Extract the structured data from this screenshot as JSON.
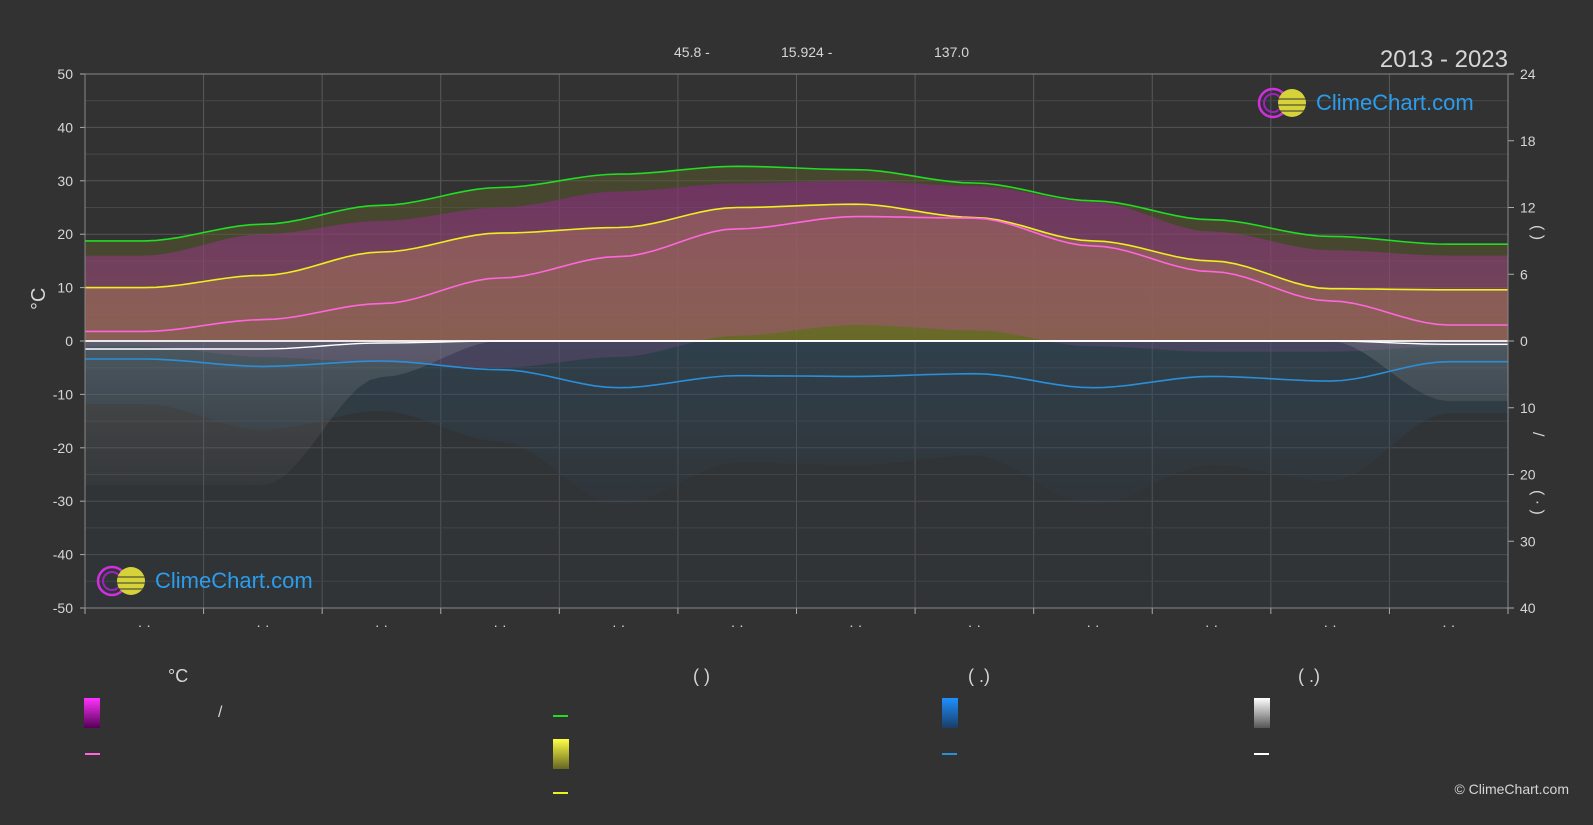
{
  "header": {
    "value_1": "45.8 -",
    "value_2": "15.924 -",
    "value_3": "137.0",
    "period": "2013 - 2023"
  },
  "axes": {
    "left_unit": "°C",
    "left_ticks": [
      "50",
      "40",
      "30",
      "20",
      "10",
      "0",
      "-10",
      "-20",
      "-30",
      "-40",
      "-50"
    ],
    "right_upper_ticks": [
      "24",
      "18",
      "12",
      "6",
      "0"
    ],
    "right_lower_ticks": [
      "10",
      "20",
      "30",
      "40"
    ],
    "right_title_upper": "(        )",
    "right_title_slash": "/",
    "right_title_lower": "(  ·  )",
    "x_ticks": [
      "· ·",
      "· ·",
      "· ·",
      "· ·",
      "· ·",
      "· ·",
      "· ·",
      "· ·",
      "· ·",
      "· ·",
      "· ·",
      "· ·"
    ]
  },
  "legend": {
    "temp_head": "°C",
    "sun_head": "(           )",
    "rain_head": "(    .)",
    "snow_head": "(    .)",
    "temp_range_text": "/",
    "colors": {
      "temp_range": "#e020e0",
      "temp_mean": "#ff66dd",
      "daylight": "#22dd22",
      "sunshine": "#dddd33",
      "sunshine_mean": "#eeee22",
      "rain": "#1e88e5",
      "rain_mean": "#2a8fd8",
      "snow": "#e0e0e0",
      "snow_mean": "#ffffff"
    }
  },
  "logos": {
    "top": "ClimeChart.com",
    "bottom": "ClimeChart.com"
  },
  "copyright": "© ClimeChart.com",
  "chart_data": {
    "type": "area",
    "x": [
      0.5,
      1.5,
      2.5,
      3.5,
      4.5,
      5.5,
      6.5,
      7.5,
      8.5,
      9.5,
      10.5,
      11.5
    ],
    "xlim": [
      0,
      12
    ],
    "ylim": [
      -50,
      50
    ],
    "y2_upper_lim": [
      0,
      24
    ],
    "y2_lower_lim": [
      0,
      40
    ],
    "grid": true,
    "series": [
      {
        "axis": "left",
        "values": [
          1.8,
          4.0,
          7.0,
          11.8,
          15.8,
          21.0,
          23.3,
          23.0,
          17.8,
          13.0,
          7.5,
          3.0
        ]
      },
      {
        "axis": "left",
        "values": [
          16.0,
          20.0,
          22.5,
          25.0,
          28.0,
          29.5,
          30.0,
          29.0,
          26.0,
          20.5,
          17.0,
          16.0
        ]
      },
      {
        "axis": "left",
        "values": [
          -1.0,
          -3.0,
          -4.0,
          -5.0,
          -3.0,
          1.0,
          3.0,
          2.0,
          -1.0,
          -2.0,
          -2.0,
          -1.0
        ]
      },
      {
        "axis": "right_upper",
        "values": [
          9.0,
          10.5,
          12.2,
          13.8,
          15.0,
          15.7,
          15.4,
          14.2,
          12.6,
          10.9,
          9.4,
          8.7
        ]
      },
      {
        "axis": "right_upper",
        "values": [
          4.8,
          5.9,
          8.0,
          9.7,
          10.2,
          12.0,
          12.3,
          11.1,
          9.0,
          7.2,
          4.7,
          4.6
        ]
      },
      {
        "axis": "right_lower",
        "values": [
          2.7,
          3.8,
          3.0,
          4.3,
          7.0,
          5.2,
          5.3,
          4.9,
          7.0,
          5.3,
          6.0,
          3.1
        ]
      },
      {
        "axis": "right_lower",
        "values": [
          1.2,
          1.2,
          0.3,
          0.0,
          0.0,
          0.0,
          0.0,
          0.0,
          0.0,
          0.0,
          0.0,
          0.5
        ]
      }
    ]
  }
}
